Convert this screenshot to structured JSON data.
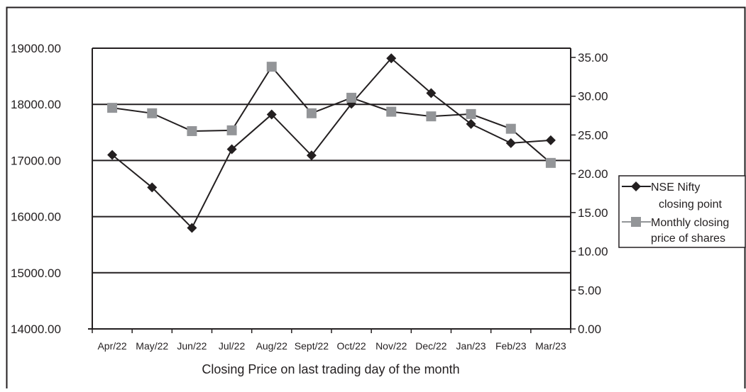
{
  "chart_data": {
    "type": "line",
    "categories": [
      "Apr/22",
      "May/22",
      "Jun/22",
      "Jul/22",
      "Aug/22",
      "Sept/22",
      "Oct/22",
      "Nov/22",
      "Dec/22",
      "Jan/23",
      "Feb/23",
      "Mar/23"
    ],
    "xlabel": "Closing Price on last trading day of the month",
    "y_left": {
      "range": [
        14000,
        19000
      ],
      "ticks": [
        "19000.00",
        "18000.00",
        "17000.00",
        "16000.00",
        "15000.00",
        "14000.00"
      ],
      "tick_values": [
        19000,
        18000,
        17000,
        16000,
        15000,
        14000
      ]
    },
    "y_right": {
      "range": [
        0,
        35
      ],
      "ticks": [
        "35.00",
        "30.00",
        "25.00",
        "20.00",
        "15.00",
        "10.00",
        "5.00",
        "0.00"
      ],
      "tick_values": [
        35,
        30,
        25,
        20,
        15,
        10,
        5,
        0
      ]
    },
    "grid": true,
    "legend_position": "right",
    "series": [
      {
        "name": "NSE Nifty closing point",
        "legend_lines": [
          "NSE Nifty",
          "closing point"
        ],
        "axis": "left",
        "marker": "diamond",
        "color": "#231f20",
        "values": [
          17100,
          16520,
          15800,
          17200,
          17820,
          17090,
          18010,
          18820,
          18200,
          17650,
          17310,
          17360
        ]
      },
      {
        "name": "Monthly closing price of shares",
        "legend_lines": [
          "Monthly closing",
          "price of shares"
        ],
        "axis": "right",
        "marker": "square",
        "color": "#939598",
        "values": [
          28.5,
          27.8,
          25.5,
          25.6,
          33.8,
          27.8,
          29.8,
          28.0,
          27.4,
          27.7,
          25.8,
          21.4
        ]
      }
    ]
  }
}
